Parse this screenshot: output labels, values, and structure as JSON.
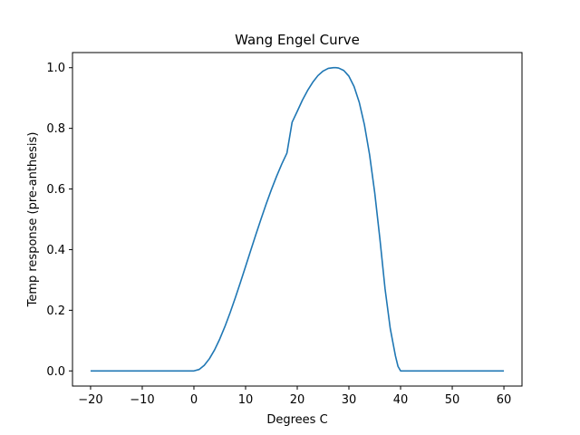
{
  "chart_data": {
    "type": "line",
    "title": "Wang Engel Curve",
    "xlabel": "Degrees C",
    "ylabel": "Temp response (pre-anthesis)",
    "xlim": [
      -23.5,
      63.5
    ],
    "ylim": [
      -0.05,
      1.05
    ],
    "xticks": [
      -20,
      -10,
      0,
      10,
      20,
      30,
      40,
      50,
      60
    ],
    "xtick_labels": [
      "−20",
      "−10",
      "0",
      "10",
      "20",
      "30",
      "40",
      "50",
      "60"
    ],
    "yticks": [
      0.0,
      0.2,
      0.4,
      0.6,
      0.8,
      1.0
    ],
    "ytick_labels": [
      "0.0",
      "0.2",
      "0.4",
      "0.6",
      "0.8",
      "1.0"
    ],
    "grid": false,
    "line_color": "#1f77b4",
    "series": [
      {
        "x": [
          -20,
          -10,
          0,
          1,
          2,
          3,
          4,
          5,
          6,
          7,
          8,
          9,
          10,
          11,
          12,
          13,
          14,
          15,
          16,
          17,
          18,
          19,
          20,
          21,
          22,
          23,
          24,
          25,
          26,
          27,
          27.5,
          28,
          29,
          30,
          31,
          32,
          33,
          34,
          35,
          36,
          37,
          38,
          39,
          39.5,
          40,
          40.5,
          50,
          60
        ],
        "values": [
          0,
          0,
          0,
          0.0047,
          0.0183,
          0.0402,
          0.0694,
          0.1051,
          0.1462,
          0.1917,
          0.2406,
          0.2919,
          0.3445,
          0.3976,
          0.4502,
          0.5016,
          0.5511,
          0.598,
          0.6418,
          0.6821,
          0.7183,
          0.82,
          0.856,
          0.893,
          0.925,
          0.952,
          0.974,
          0.989,
          0.998,
          1.0,
          1.0,
          0.999,
          0.991,
          0.972,
          0.938,
          0.886,
          0.812,
          0.713,
          0.587,
          0.435,
          0.27,
          0.14,
          0.05,
          0.015,
          0.0,
          0.0,
          0.0,
          0.0
        ]
      }
    ]
  }
}
